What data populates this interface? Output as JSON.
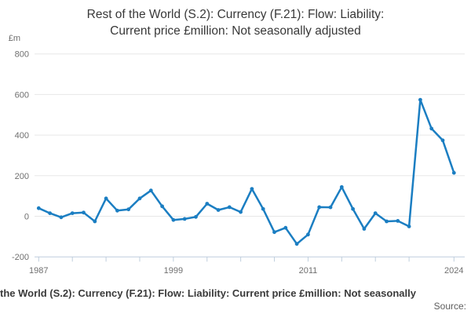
{
  "title": {
    "line1": "Rest of the World (S.2): Currency (F.21): Flow: Liability:",
    "line2": "Current price £million: Not seasonally adjusted"
  },
  "footer": {
    "clipped_title": "the World (S.2): Currency (F.21): Flow: Liability: Current price £million: Not seasonally",
    "source_label": "Source:"
  },
  "chart_data": {
    "type": "line",
    "title": "Rest of the World (S.2): Currency (F.21): Flow: Liability: Current price £million: Not seasonally adjusted",
    "ylabel": "£m",
    "x": [
      1987,
      1988,
      1989,
      1990,
      1991,
      1992,
      1993,
      1994,
      1995,
      1996,
      1997,
      1998,
      1999,
      2000,
      2001,
      2002,
      2003,
      2004,
      2005,
      2006,
      2007,
      2008,
      2009,
      2010,
      2011,
      2012,
      2013,
      2014,
      2015,
      2016,
      2017,
      2018,
      2019,
      2020,
      2021,
      2022,
      2023,
      2024
    ],
    "values": [
      40,
      15,
      -5,
      15,
      18,
      -25,
      88,
      28,
      34,
      88,
      127,
      49,
      -18,
      -13,
      -3,
      62,
      31,
      45,
      21,
      135,
      36,
      -78,
      -57,
      -136,
      -90,
      45,
      44,
      144,
      36,
      -62,
      15,
      -25,
      -23,
      -50,
      574,
      432,
      374,
      214
    ],
    "ylim": [
      -200,
      800
    ],
    "y_ticks": [
      -200,
      0,
      200,
      400,
      600,
      800
    ],
    "gridline_ticks": [
      0,
      200,
      400,
      600,
      800
    ],
    "x_tick_years": [
      1987,
      1990,
      1993,
      1996,
      1999,
      2002,
      2005,
      2008,
      2011,
      2014,
      2017,
      2020,
      2024
    ],
    "x_label_years": [
      1987,
      1999,
      2011,
      2024
    ],
    "grid": "horizontal",
    "legend": "none",
    "marker": "circle",
    "colors": {
      "line": "#1b7ec2",
      "grid": "#e7e7e7",
      "axis": "#bfcedd",
      "tick_text": "#6f6f6f"
    }
  }
}
